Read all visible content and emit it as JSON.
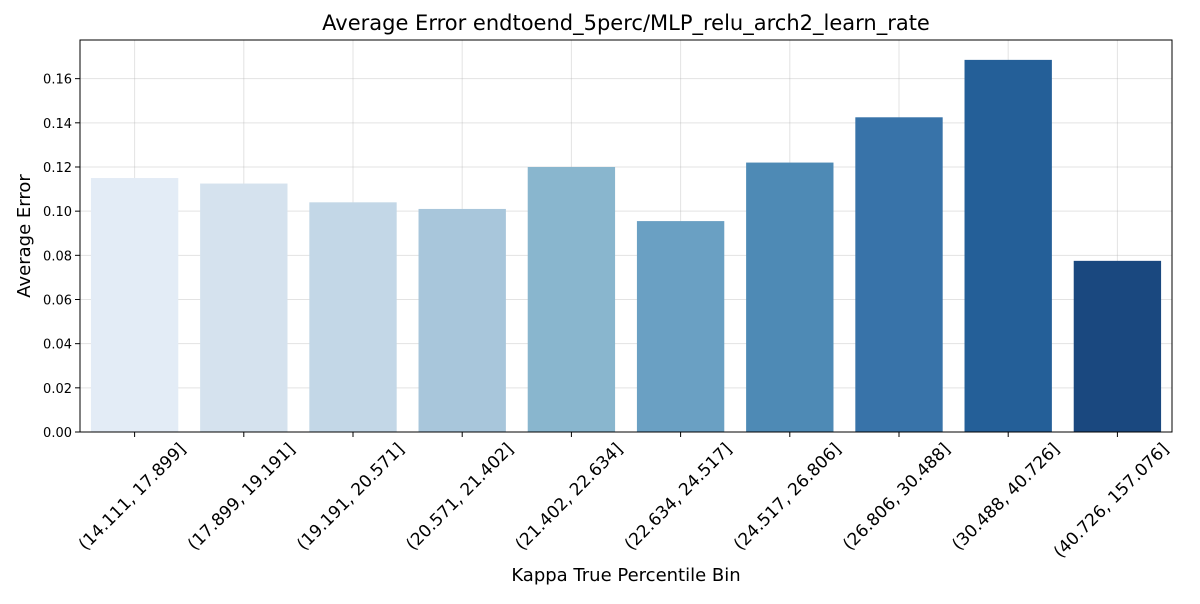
{
  "chart_data": {
    "type": "bar",
    "title": "Average Error endtoend_5perc/MLP_relu_arch2_learn_rate",
    "xlabel": "Kappa True Percentile Bin",
    "ylabel": "Average Error",
    "categories": [
      "(14.111, 17.899]",
      "(17.899, 19.191]",
      "(19.191, 20.571]",
      "(20.571, 21.402]",
      "(21.402, 22.634]",
      "(22.634, 24.517]",
      "(24.517, 26.806]",
      "(26.806, 30.488]",
      "(30.488, 40.726]",
      "(40.726, 157.076]"
    ],
    "values": [
      0.115,
      0.1125,
      0.104,
      0.101,
      0.12,
      0.0955,
      0.122,
      0.1425,
      0.1685,
      0.0775
    ],
    "colors": [
      "#e3ecf6",
      "#d5e2ee",
      "#c3d7e7",
      "#a8c6db",
      "#89b6ce",
      "#6aa0c3",
      "#4e8ab5",
      "#3873a9",
      "#245f98",
      "#1a487f"
    ],
    "ylim": [
      0,
      0.1775
    ],
    "yticks": [
      "0.00",
      "0.02",
      "0.04",
      "0.06",
      "0.08",
      "0.10",
      "0.12",
      "0.14",
      "0.16"
    ],
    "grid": true,
    "legend": "none"
  }
}
